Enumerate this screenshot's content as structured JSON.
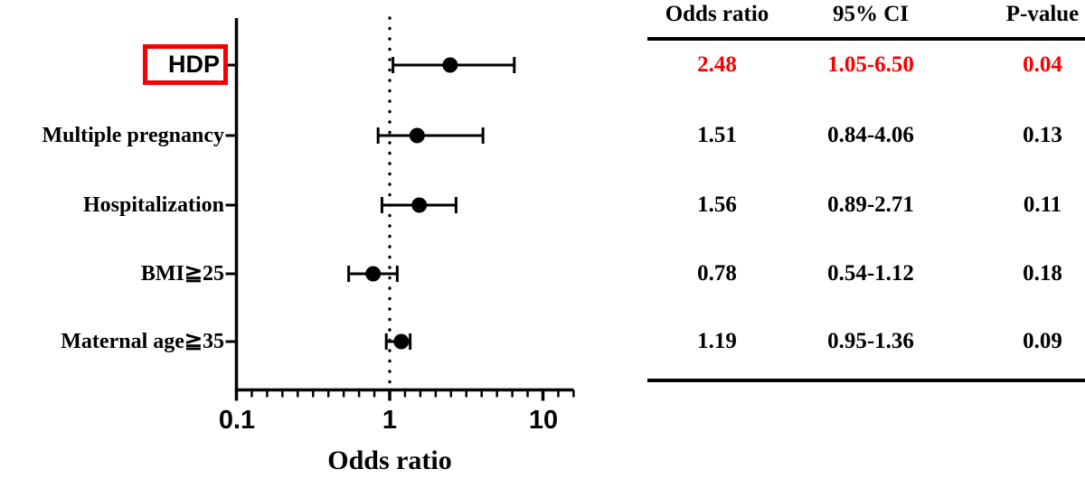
{
  "accent_color": "#f80000",
  "text_color": "#000000",
  "chart_data": {
    "type": "scatter",
    "subtype": "forest-plot",
    "xlabel": "Odds ratio",
    "x_scale": "log",
    "xlim": [
      0.1,
      15.5
    ],
    "x_ticks": [
      "0.1",
      "1",
      "10"
    ],
    "x_tick_values": [
      0.1,
      1,
      10
    ],
    "reference_line": 1,
    "grid": false,
    "marker": "filled-circle",
    "rows": [
      {
        "label": "HDP",
        "odds_ratio": 2.48,
        "ci_low": 1.05,
        "ci_high": 6.5,
        "p_value": 0.04,
        "highlight": true
      },
      {
        "label": "Multiple pregnancy",
        "odds_ratio": 1.51,
        "ci_low": 0.84,
        "ci_high": 4.06,
        "p_value": 0.13,
        "highlight": false
      },
      {
        "label": "Hospitalization",
        "odds_ratio": 1.56,
        "ci_low": 0.89,
        "ci_high": 2.71,
        "p_value": 0.11,
        "highlight": false
      },
      {
        "label": "BMI≧25",
        "odds_ratio": 0.78,
        "ci_low": 0.54,
        "ci_high": 1.12,
        "p_value": 0.18,
        "highlight": false
      },
      {
        "label": "Maternal age≧35",
        "odds_ratio": 1.19,
        "ci_low": 0.95,
        "ci_high": 1.36,
        "p_value": 0.09,
        "highlight": false
      }
    ]
  },
  "table": {
    "headers": [
      "Odds ratio",
      "95% CI",
      "P-value"
    ],
    "rows": [
      {
        "odds_ratio": "2.48",
        "ci": "1.05-6.50",
        "p_value": "0.04",
        "highlight": true
      },
      {
        "odds_ratio": "1.51",
        "ci": "0.84-4.06",
        "p_value": "0.13",
        "highlight": false
      },
      {
        "odds_ratio": "1.56",
        "ci": "0.89-2.71",
        "p_value": "0.11",
        "highlight": false
      },
      {
        "odds_ratio": "0.78",
        "ci": "0.54-1.12",
        "p_value": "0.18",
        "highlight": false
      },
      {
        "odds_ratio": "1.19",
        "ci": "0.95-1.36",
        "p_value": "0.09",
        "highlight": false
      }
    ]
  }
}
